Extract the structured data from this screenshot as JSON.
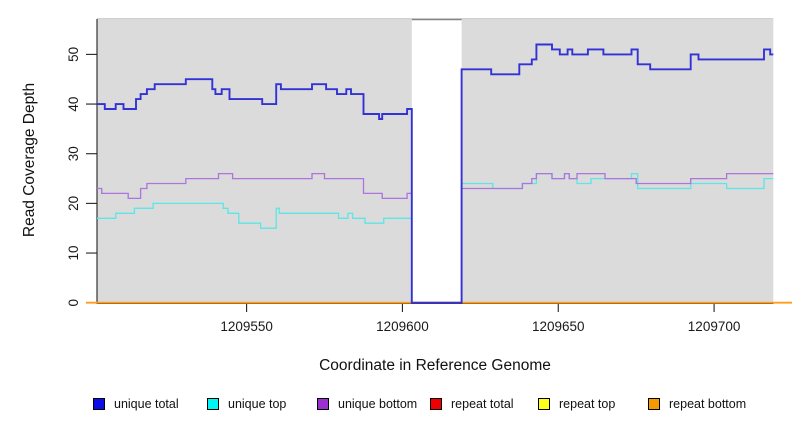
{
  "chart_data": {
    "type": "line",
    "subtype": "step-after-coverage-plot",
    "title": "",
    "xlabel": "Coordinate in Reference Genome",
    "ylabel": "Read Coverage Depth",
    "xlim": [
      1209502,
      1209719
    ],
    "ylim": [
      0,
      57
    ],
    "xticks": [
      1209550,
      1209600,
      1209650,
      1209700
    ],
    "yticks": [
      0,
      10,
      20,
      30,
      40,
      50
    ],
    "grid": false,
    "plot_background": "#dbdbdb",
    "page_background": "#ffffff",
    "axis_color": "#222222",
    "tick_label_color": "#1a1a1a",
    "masked_region": {
      "x_from": 1209603,
      "x_to": 1209619,
      "fill": "#ffffff",
      "top_border_color": "#868686"
    },
    "legend_position": "bottom",
    "series": [
      {
        "name": "repeat total",
        "line_color": "#e00000",
        "legend_color": "#ee0000",
        "line_width": 1.4,
        "points": [
          [
            1209502,
            0
          ],
          [
            1209719,
            0
          ]
        ]
      },
      {
        "name": "repeat top",
        "line_color": "#ffff00",
        "legend_color": "#ffff1e",
        "line_width": 1.4,
        "points": [
          [
            1209502,
            0
          ],
          [
            1209719,
            0
          ]
        ]
      },
      {
        "name": "repeat bottom",
        "line_color": "#ff9d1e",
        "legend_color": "#f59b00",
        "line_width": 1.8,
        "points": [
          [
            1209498.5,
            0
          ],
          [
            1209725,
            0
          ]
        ]
      },
      {
        "name": "unique top",
        "line_color": "#5ce6e6",
        "legend_color": "#00f5f5",
        "line_width": 1.3,
        "points": [
          [
            1209502,
            17
          ],
          [
            1209508,
            18
          ],
          [
            1209514,
            19
          ],
          [
            1209520,
            20
          ],
          [
            1209542.5,
            19
          ],
          [
            1209544,
            18
          ],
          [
            1209547.5,
            16
          ],
          [
            1209554.5,
            15
          ],
          [
            1209559.5,
            19
          ],
          [
            1209560.5,
            18
          ],
          [
            1209579.5,
            17
          ],
          [
            1209582.5,
            18
          ],
          [
            1209584,
            17
          ],
          [
            1209588,
            16
          ],
          [
            1209594,
            17
          ],
          [
            1209603,
            0
          ],
          [
            1209619,
            24
          ],
          [
            1209629,
            23
          ],
          [
            1209638.5,
            24
          ],
          [
            1209643,
            26
          ],
          [
            1209648,
            25
          ],
          [
            1209652,
            26
          ],
          [
            1209653.5,
            25
          ],
          [
            1209656,
            24
          ],
          [
            1209660.5,
            25
          ],
          [
            1209673.5,
            26
          ],
          [
            1209675.5,
            23
          ],
          [
            1209692.5,
            24
          ],
          [
            1209704,
            23
          ],
          [
            1209716,
            25
          ],
          [
            1209719,
            25
          ]
        ]
      },
      {
        "name": "unique bottom",
        "line_color": "#ac74dc",
        "legend_color": "#9b30d0",
        "line_width": 1.3,
        "points": [
          [
            1209502,
            23
          ],
          [
            1209503.5,
            22
          ],
          [
            1209512,
            21
          ],
          [
            1209516,
            23
          ],
          [
            1209518,
            24
          ],
          [
            1209530.5,
            25
          ],
          [
            1209541,
            26
          ],
          [
            1209545.5,
            25
          ],
          [
            1209571,
            26
          ],
          [
            1209575,
            25
          ],
          [
            1209587.5,
            22
          ],
          [
            1209593.5,
            21
          ],
          [
            1209601.5,
            22
          ],
          [
            1209603,
            0
          ],
          [
            1209619,
            23
          ],
          [
            1209638.5,
            24
          ],
          [
            1209641.5,
            25
          ],
          [
            1209643,
            26
          ],
          [
            1209648,
            25
          ],
          [
            1209652,
            26
          ],
          [
            1209653.5,
            25
          ],
          [
            1209656,
            26
          ],
          [
            1209665,
            25
          ],
          [
            1209675,
            24
          ],
          [
            1209692.5,
            25
          ],
          [
            1209704,
            26
          ],
          [
            1209719,
            26
          ]
        ]
      },
      {
        "name": "unique total",
        "line_color": "#3232d6",
        "legend_color": "#0d0de8",
        "line_width": 1.9,
        "points": [
          [
            1209502,
            40
          ],
          [
            1209504.5,
            39
          ],
          [
            1209508,
            40
          ],
          [
            1209510.5,
            39
          ],
          [
            1209514.5,
            41
          ],
          [
            1209516,
            42
          ],
          [
            1209518,
            43
          ],
          [
            1209520.5,
            44
          ],
          [
            1209530.5,
            45
          ],
          [
            1209539,
            43
          ],
          [
            1209540,
            42
          ],
          [
            1209542,
            43
          ],
          [
            1209544.5,
            41
          ],
          [
            1209555,
            40
          ],
          [
            1209559.5,
            44
          ],
          [
            1209561,
            43
          ],
          [
            1209571,
            44
          ],
          [
            1209575.5,
            43
          ],
          [
            1209579,
            42
          ],
          [
            1209582,
            43
          ],
          [
            1209583.5,
            42
          ],
          [
            1209587.5,
            38
          ],
          [
            1209592.5,
            37
          ],
          [
            1209593.5,
            38
          ],
          [
            1209601.5,
            39
          ],
          [
            1209603,
            0
          ],
          [
            1209619,
            47
          ],
          [
            1209628.5,
            46
          ],
          [
            1209637.5,
            48
          ],
          [
            1209641.5,
            49
          ],
          [
            1209643,
            52
          ],
          [
            1209648,
            51
          ],
          [
            1209650.5,
            50
          ],
          [
            1209653,
            51
          ],
          [
            1209654.5,
            50
          ],
          [
            1209659.5,
            51
          ],
          [
            1209664.5,
            50
          ],
          [
            1209673.5,
            51
          ],
          [
            1209675.5,
            48
          ],
          [
            1209679.5,
            47
          ],
          [
            1209692.5,
            50
          ],
          [
            1209695,
            49
          ],
          [
            1209716,
            51
          ],
          [
            1209718,
            50
          ],
          [
            1209719,
            50
          ]
        ]
      }
    ],
    "legend": [
      {
        "label": "unique total",
        "color": "#0d0de8"
      },
      {
        "label": "unique top",
        "color": "#00f5f5"
      },
      {
        "label": "unique bottom",
        "color": "#9b30d0"
      },
      {
        "label": "repeat total",
        "color": "#ee0000"
      },
      {
        "label": "repeat top",
        "color": "#ffff1e"
      },
      {
        "label": "repeat bottom",
        "color": "#f59b00"
      }
    ]
  }
}
